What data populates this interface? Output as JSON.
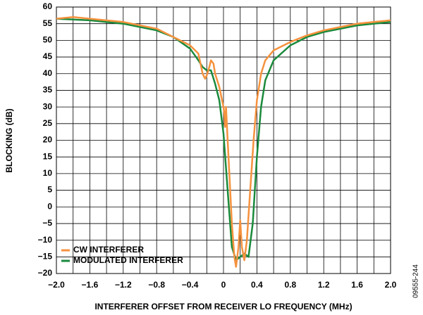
{
  "chart_data": {
    "type": "line",
    "xlabel": "INTERFERER OFFSET FROM RECEIVER LO FREQUENCY (MHz)",
    "ylabel": "BLOCKING (dB)",
    "side_note": "09555-244",
    "xlim": [
      -2.0,
      2.0
    ],
    "ylim": [
      -20,
      60
    ],
    "xticks": [
      {
        "value": -2.0,
        "label": "−2.0"
      },
      {
        "value": -1.6,
        "label": "−1.6"
      },
      {
        "value": -1.2,
        "label": "−1.2"
      },
      {
        "value": -0.8,
        "label": "−0.8"
      },
      {
        "value": -0.4,
        "label": "−0.4"
      },
      0,
      0.4,
      0.8,
      1.2,
      1.6,
      {
        "value": 2.0,
        "label": "2.0"
      }
    ],
    "xgrid": [
      -1.8,
      -1.4,
      -1.0,
      -0.6,
      -0.2,
      0.2,
      0.6,
      1.0,
      1.4,
      1.8
    ],
    "yticks": [
      {
        "value": -20,
        "label": "−20"
      },
      {
        "value": -15,
        "label": "−15"
      },
      {
        "value": -10,
        "label": "−10"
      },
      {
        "value": -5,
        "label": "−5"
      },
      0,
      5,
      10,
      15,
      20,
      25,
      30,
      35,
      40,
      45,
      50,
      55,
      60
    ],
    "grid": true,
    "legend": "lower left",
    "series": [
      {
        "name": "CW INTERFERER",
        "color": "#f5923e",
        "x": [
          -2.0,
          -1.8,
          -1.6,
          -1.2,
          -0.8,
          -0.6,
          -0.4,
          -0.3,
          -0.25,
          -0.22,
          -0.2,
          -0.17,
          -0.15,
          -0.12,
          -0.1,
          -0.05,
          0,
          0.01,
          0.02,
          0.03,
          0.05,
          0.08,
          0.1,
          0.13,
          0.15,
          0.18,
          0.2,
          0.22,
          0.25,
          0.28,
          0.32,
          0.36,
          0.4,
          0.45,
          0.5,
          0.6,
          0.8,
          1.0,
          1.2,
          1.4,
          1.6,
          1.8,
          2.0
        ],
        "values": [
          56.5,
          57,
          56.5,
          55.5,
          53.5,
          51,
          48.5,
          46,
          40,
          38.5,
          39.5,
          42,
          44,
          43,
          40,
          36,
          30,
          28,
          24,
          30,
          20,
          5,
          -5,
          -15,
          -18,
          -12,
          -4,
          -12,
          -16,
          -10,
          5,
          20,
          32,
          40,
          44,
          47,
          49.5,
          51.5,
          53,
          54,
          55,
          55.5,
          56
        ]
      },
      {
        "name": "MODULATED INTERFERER",
        "color": "#1b8a3c",
        "x": [
          -2.0,
          -1.6,
          -1.2,
          -0.8,
          -0.6,
          -0.4,
          -0.3,
          -0.25,
          -0.2,
          -0.15,
          -0.1,
          -0.05,
          0,
          0.05,
          0.1,
          0.15,
          0.2,
          0.25,
          0.3,
          0.35,
          0.4,
          0.45,
          0.5,
          0.6,
          0.8,
          1.0,
          1.2,
          1.6,
          2.0
        ],
        "values": [
          56.5,
          56,
          55,
          53,
          51,
          47.5,
          44,
          42,
          41,
          41,
          37,
          32,
          22,
          5,
          -12,
          -16,
          -15,
          -14,
          -15,
          -5,
          15,
          30,
          38,
          44,
          48.5,
          51,
          52.5,
          54.5,
          55.5
        ]
      }
    ]
  }
}
